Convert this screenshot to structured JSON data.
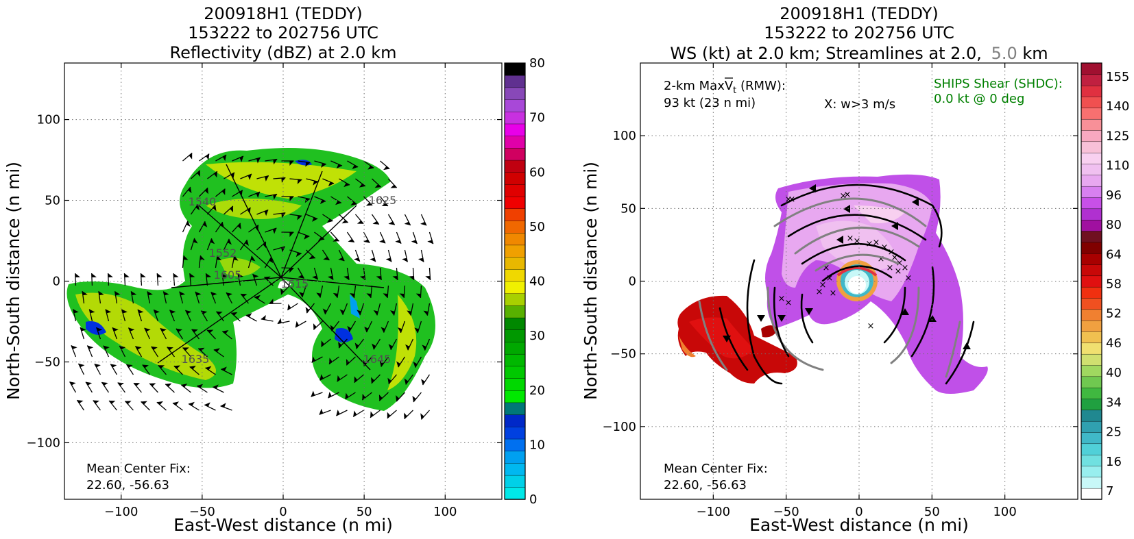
{
  "chart_data": [
    {
      "type": "heatmap",
      "title_lines": [
        "200918H1 (TEDDY)",
        "153222 to 202756 UTC",
        "Reflectivity (dBZ) at 2.0 km"
      ],
      "xlabel": "East-West distance (n mi)",
      "ylabel": "North-South distance (n mi)",
      "xlim": [
        -135,
        135
      ],
      "ylim": [
        -135,
        135
      ],
      "xticks": [
        -100,
        -50,
        0,
        50,
        100
      ],
      "yticks": [
        -100,
        -50,
        0,
        50,
        100
      ],
      "grid": true,
      "center_fix_label": "Mean Center Fix:",
      "center_fix_value": "22.60, -56.63",
      "colorbar": {
        "min": 0,
        "max": 80,
        "ticks": [
          "0",
          "10",
          "20",
          "30",
          "40",
          "50",
          "60",
          "70",
          "80"
        ],
        "colors": [
          "#00e8e8",
          "#00d0e8",
          "#00b8f0",
          "#00a0f0",
          "#0070f0",
          "#0040e0",
          "#0028c8",
          "#007878",
          "#00e800",
          "#00d800",
          "#00c800",
          "#00b800",
          "#00a800",
          "#009800",
          "#008800",
          "#58b000",
          "#a8d000",
          "#f0f000",
          "#f0d800",
          "#e8b800",
          "#f0a000",
          "#f08800",
          "#f06800",
          "#f04000",
          "#f00000",
          "#e00000",
          "#d00000",
          "#c00010",
          "#d00060",
          "#e000a8",
          "#e800e8",
          "#c830e0",
          "#a848d8",
          "#8848b8",
          "#603090",
          "#000000"
        ]
      },
      "annotations": [
        "1625",
        "1540",
        "1552",
        "1605",
        "1615",
        "1635",
        "1645"
      ]
    },
    {
      "type": "heatmap",
      "title_lines": [
        "200918H1 (TEDDY)",
        "153222 to 202756 UTC"
      ],
      "title_line3_a": "WS (kt) at 2.0 km; Streamlines at 2.0,",
      "title_line3_b": "5.0",
      "title_line3_c": "km",
      "title_line3_b_color": "#808080",
      "xlabel": "East-West distance (n mi)",
      "ylabel": "North-South distance (n mi)",
      "xlim": [
        -150,
        150
      ],
      "ylim": [
        -150,
        150
      ],
      "xticks": [
        -100,
        -50,
        0,
        50,
        100
      ],
      "yticks": [
        -100,
        -50,
        0,
        50,
        100
      ],
      "grid": true,
      "maxvt_label_a": "2-km MaxV",
      "maxvt_label_sub": "t",
      "maxvt_label_b": " (RMW):",
      "maxvt_value": "93 kt (23 n mi)",
      "w_label": "X: w>3 m/s",
      "shear_label": "SHIPS Shear (SHDC):",
      "shear_value": "0.0 kt @ 0 deg",
      "shear_color": "#008000",
      "center_fix_label": "Mean Center Fix:",
      "center_fix_value": "22.60, -56.63",
      "colorbar": {
        "ticks": [
          "7",
          "16",
          "25",
          "34",
          "40",
          "46",
          "52",
          "58",
          "64",
          "80",
          "96",
          "110",
          "125",
          "140",
          "155"
        ],
        "colors": [
          "#ffffff",
          "#c8f8f8",
          "#98eeee",
          "#70e0e0",
          "#50d0d8",
          "#40b8c8",
          "#30a0b0",
          "#208890",
          "#20a040",
          "#40b840",
          "#70c850",
          "#a0d860",
          "#d0e070",
          "#f0e070",
          "#f0c050",
          "#f0a040",
          "#f08030",
          "#f05020",
          "#f03010",
          "#e01010",
          "#c80808",
          "#a80000",
          "#800000",
          "#701020",
          "#a010a0",
          "#b030d0",
          "#c850e8",
          "#d880f0",
          "#e8a8f0",
          "#f0c0f0",
          "#f8d0f0",
          "#f8c0d8",
          "#f8a8c0",
          "#f89098",
          "#f87070",
          "#f05050",
          "#e03040",
          "#c02040",
          "#a01030"
        ]
      }
    }
  ]
}
